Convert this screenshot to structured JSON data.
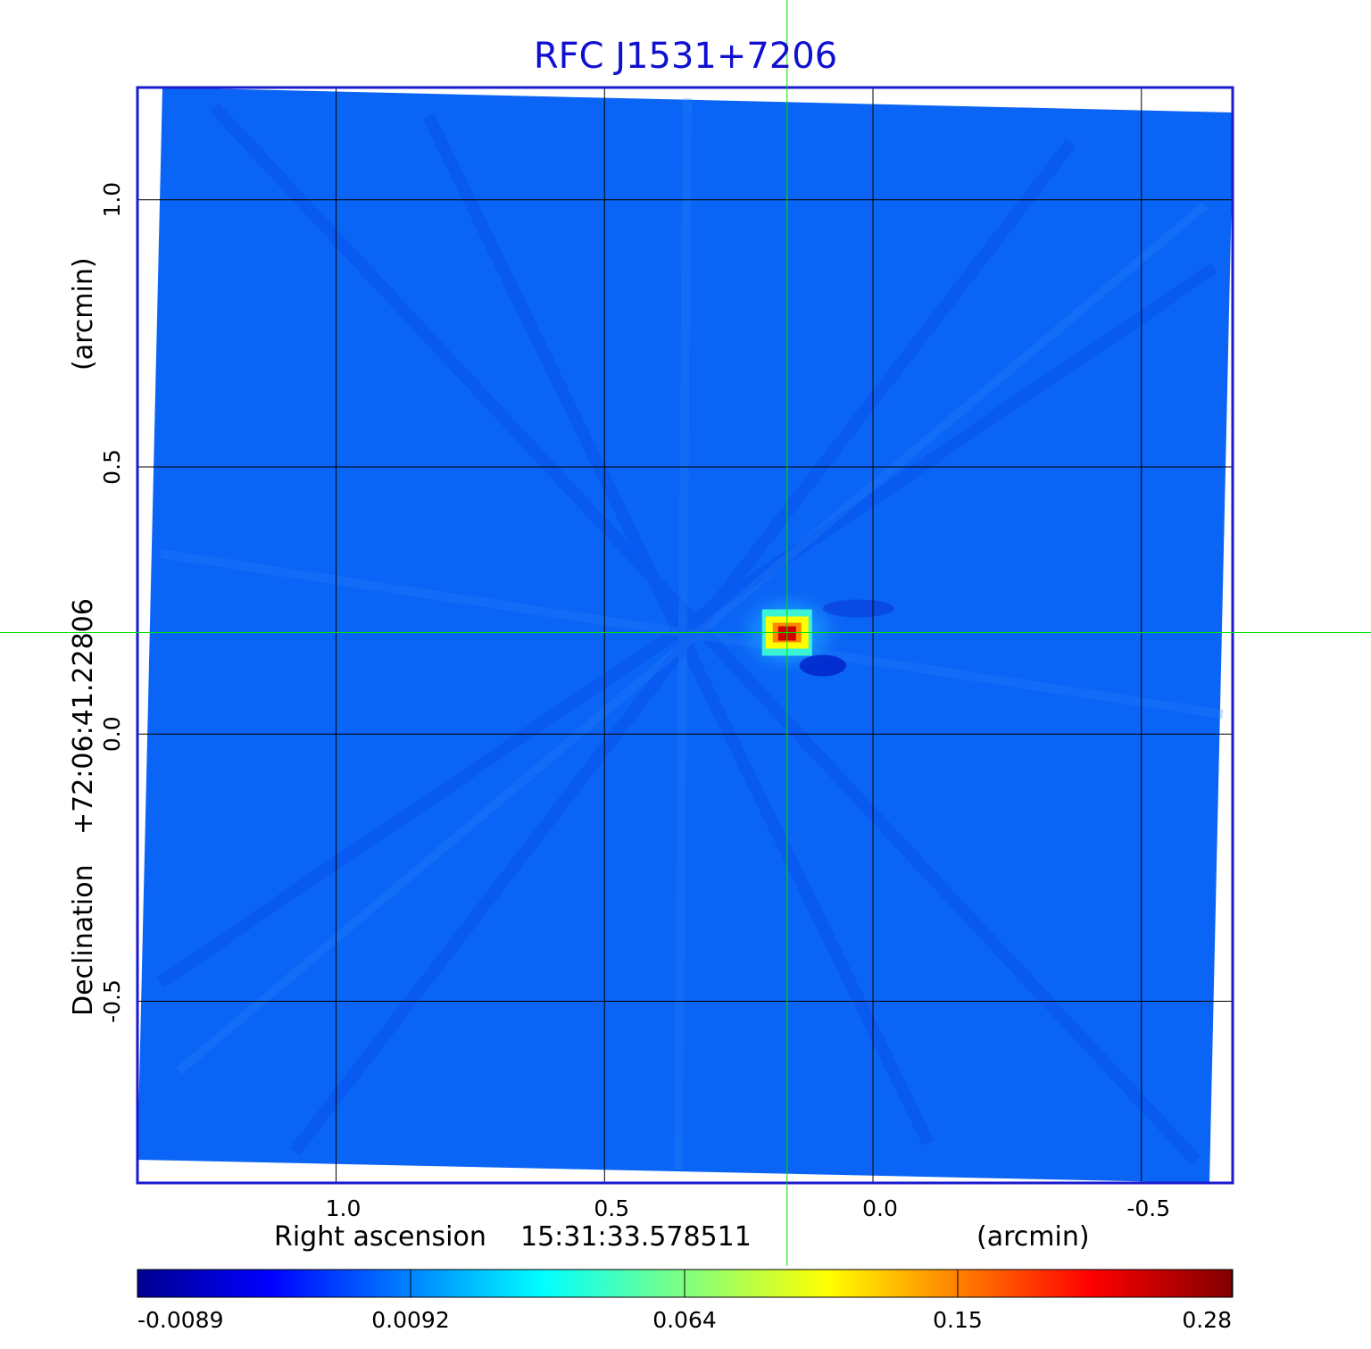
{
  "chart_data": {
    "type": "heatmap",
    "title": "RFC J1531+7206",
    "colors": {
      "title": "#1010d0",
      "frame": "#1a1ad0",
      "crosshair": "#00e000",
      "grid": "#000000"
    },
    "xaxis": {
      "label_name": "Right ascension",
      "label_value": "15:31:33.578511",
      "unit": "(arcmin)",
      "range": [
        1.37,
        -0.67
      ],
      "ticks": [
        {
          "value": 1.0,
          "label": "1.0"
        },
        {
          "value": 0.5,
          "label": "0.5"
        },
        {
          "value": 0.0,
          "label": "0.0"
        },
        {
          "value": -0.5,
          "label": "-0.5"
        }
      ]
    },
    "yaxis": {
      "label_name": "Declination",
      "label_value": "+72:06:41.22806",
      "unit": "(arcmin)",
      "range": [
        -0.84,
        1.21
      ],
      "ticks": [
        {
          "value": 1.0,
          "label": "1.0"
        },
        {
          "value": 0.5,
          "label": "0.5"
        },
        {
          "value": 0.0,
          "label": "0.0"
        },
        {
          "value": -0.5,
          "label": "-0.5"
        }
      ]
    },
    "grid": true,
    "crosshair": {
      "x": 0.16,
      "y": 0.19
    },
    "source": {
      "x": 0.16,
      "y": 0.19,
      "peak": 0.28
    },
    "colorbar": {
      "scale": "nonlinear",
      "colormap": "jet",
      "range": [
        -0.0089,
        0.28
      ],
      "ticks": [
        {
          "value": -0.0089,
          "label": "-0.0089"
        },
        {
          "value": 0.0092,
          "label": "0.0092"
        },
        {
          "value": 0.064,
          "label": "0.064"
        },
        {
          "value": 0.15,
          "label": "0.15"
        },
        {
          "value": 0.28,
          "label": "0.28"
        }
      ]
    }
  }
}
